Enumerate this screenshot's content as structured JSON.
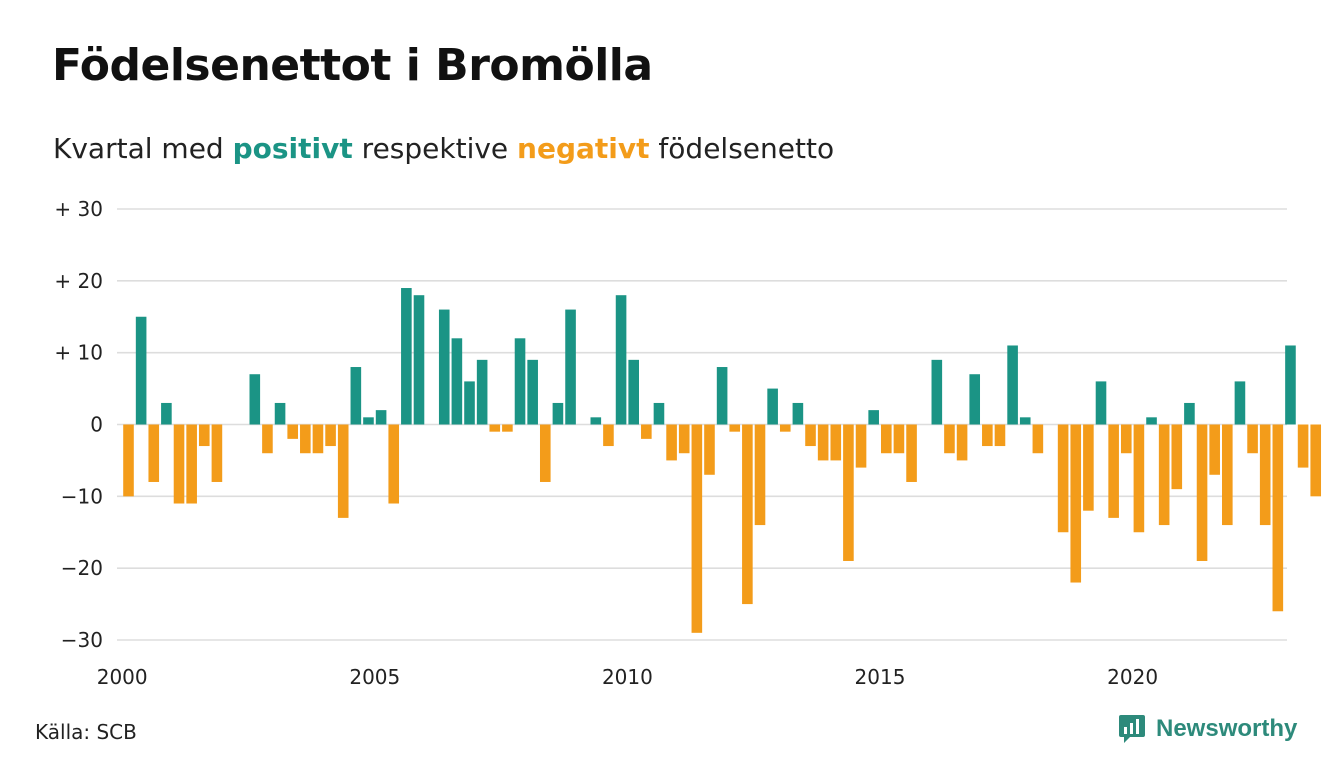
{
  "header": {
    "title": "Födelsenettot i Bromölla",
    "subtitle_prefix": "Kvartal med ",
    "subtitle_positive": "positivt",
    "subtitle_middle": " respektive ",
    "subtitle_negative": "negativt",
    "subtitle_suffix": " födelsenetto"
  },
  "footer": {
    "source": "Källa: SCB",
    "brand": "Newsworthy"
  },
  "colors": {
    "positive": "#1b9485",
    "negative": "#f39c1a",
    "grid": "#dddddd",
    "brand": "#2d8a7b"
  },
  "chart_data": {
    "type": "bar",
    "x_start": "2000 Q1",
    "x_ticks": [
      2000,
      2005,
      2010,
      2015,
      2020
    ],
    "y_ticks": [
      {
        "value": 30,
        "label": "+ 30"
      },
      {
        "value": 20,
        "label": "+ 20"
      },
      {
        "value": 10,
        "label": "+ 10"
      },
      {
        "value": 0,
        "label": "0"
      },
      {
        "value": -10,
        "label": "−10"
      },
      {
        "value": -20,
        "label": "−20"
      },
      {
        "value": -30,
        "label": "−30"
      }
    ],
    "ylim": [
      -30,
      30
    ],
    "grid": true,
    "values": [
      -10,
      15,
      -8,
      3,
      -11,
      -11,
      -3,
      -8,
      0,
      0,
      7,
      -4,
      3,
      -2,
      -4,
      -4,
      -3,
      -13,
      8,
      1,
      2,
      -11,
      19,
      18,
      0,
      16,
      12,
      6,
      9,
      -1,
      -1,
      12,
      9,
      -8,
      3,
      16,
      0,
      1,
      -3,
      18,
      9,
      -2,
      3,
      -5,
      -4,
      -29,
      -7,
      8,
      -1,
      -25,
      -14,
      5,
      -1,
      3,
      -3,
      -5,
      -5,
      -19,
      -6,
      2,
      -4,
      -4,
      -8,
      0,
      9,
      -4,
      -5,
      7,
      -3,
      -3,
      11,
      1,
      -4,
      0,
      -15,
      -22,
      -12,
      6,
      -13,
      -4,
      -15,
      1,
      -14,
      -9,
      3,
      -19,
      -7,
      -14,
      6,
      -4,
      -14,
      -26,
      11,
      -6,
      -10
    ]
  }
}
